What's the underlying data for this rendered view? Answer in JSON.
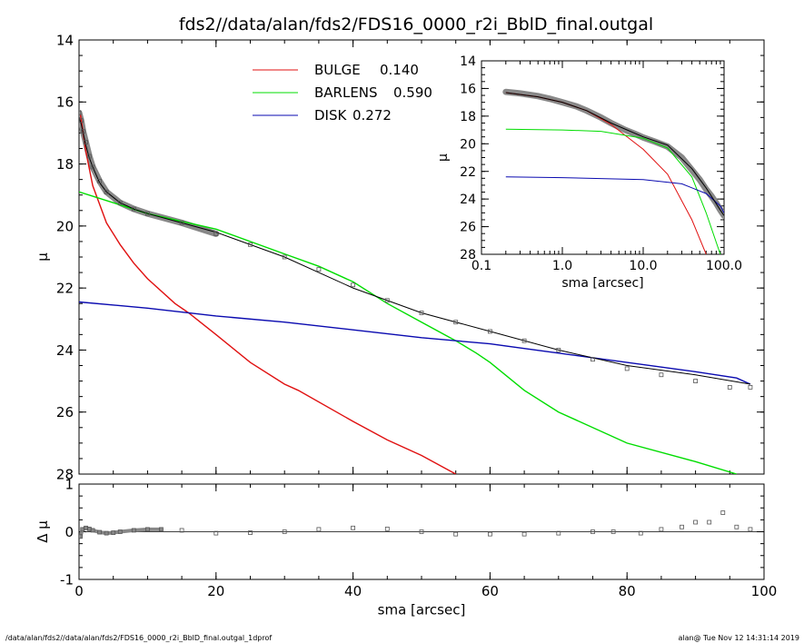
{
  "title": "fds2//data/alan/fds2/FDS16_0000_r2i_BblD_final.outgal",
  "footer": {
    "left": "/data/alan/fds2//data/alan/fds2/FDS16_0000_r2i_BblD_final.outgal_1dprof",
    "right": "alan@  Tue Nov 12 14:31:14 2019"
  },
  "colors": {
    "bulge": "#e01010",
    "barlens": "#00dd00",
    "disk": "#0a0ab0",
    "data": "#555555",
    "model": "#000000"
  },
  "chart_data": [
    {
      "id": "main",
      "type": "line",
      "xlabel": "sma [arcsec]",
      "ylabel": "μ",
      "xlim": [
        0,
        100
      ],
      "ylim": [
        28,
        14
      ],
      "x_ticks": [
        0,
        20,
        40,
        60,
        80,
        100
      ],
      "y_ticks": [
        14,
        16,
        18,
        20,
        22,
        24,
        26,
        28
      ],
      "legend": {
        "placement": "top-center",
        "entries": [
          {
            "name": "BULGE",
            "value": "0.140",
            "color": "#e01010"
          },
          {
            "name": "BARLENS",
            "value": "0.590",
            "color": "#00dd00"
          },
          {
            "name": "DISK",
            "value": "0.272",
            "color": "#0a0ab0"
          }
        ]
      },
      "series": [
        {
          "key": "bulge",
          "x": [
            0.2,
            1,
            2,
            4,
            6,
            8,
            10,
            14,
            16,
            20,
            25,
            30,
            32,
            40,
            45,
            50,
            55
          ],
          "y": [
            16.4,
            17.6,
            18.7,
            19.9,
            20.6,
            21.2,
            21.7,
            22.5,
            22.8,
            23.5,
            24.4,
            25.1,
            25.3,
            26.3,
            26.9,
            27.4,
            28.0
          ]
        },
        {
          "key": "barlens",
          "x": [
            0,
            10,
            20,
            30,
            35,
            40,
            45,
            50,
            55,
            58,
            60,
            65,
            70,
            80,
            90,
            96
          ],
          "y": [
            18.9,
            19.6,
            20.1,
            20.9,
            21.3,
            21.8,
            22.5,
            23.1,
            23.7,
            24.1,
            24.4,
            25.3,
            26.0,
            27.0,
            27.6,
            28.0
          ]
        },
        {
          "key": "disk",
          "x": [
            0,
            10,
            20,
            30,
            40,
            50,
            60,
            70,
            80,
            90,
            96,
            98
          ],
          "y": [
            22.45,
            22.65,
            22.9,
            23.1,
            23.35,
            23.6,
            23.8,
            24.1,
            24.4,
            24.7,
            24.9,
            25.1
          ]
        },
        {
          "key": "model",
          "x": [
            0,
            0.3,
            0.6,
            1,
            1.5,
            2,
            3,
            4,
            6,
            8,
            10,
            15,
            20,
            30,
            40,
            50,
            60,
            70,
            80,
            90,
            98
          ],
          "y": [
            16.5,
            16.7,
            17.0,
            17.4,
            17.8,
            18.1,
            18.6,
            18.9,
            19.25,
            19.45,
            19.6,
            19.9,
            20.2,
            21.0,
            22.0,
            22.8,
            23.4,
            24.0,
            24.5,
            24.8,
            25.1
          ]
        },
        {
          "key": "data",
          "x": [
            0,
            0.3,
            0.6,
            1,
            1.5,
            2,
            3,
            4,
            6,
            8,
            10,
            15,
            20,
            25,
            30,
            35,
            40,
            45,
            50,
            55,
            60,
            65,
            70,
            75,
            80,
            85,
            90,
            95,
            98
          ],
          "y": [
            16.35,
            16.6,
            16.95,
            17.3,
            17.75,
            18.1,
            18.55,
            18.9,
            19.25,
            19.45,
            19.6,
            19.9,
            20.25,
            20.6,
            21.0,
            21.4,
            21.9,
            22.4,
            22.8,
            23.1,
            23.4,
            23.7,
            24.0,
            24.3,
            24.6,
            24.8,
            25.0,
            25.2,
            25.2
          ]
        }
      ]
    },
    {
      "id": "residual",
      "type": "scatter",
      "xlabel": "sma [arcsec]",
      "ylabel": "Δ μ",
      "xlim": [
        0,
        100
      ],
      "ylim": [
        -1,
        1
      ],
      "x_ticks": [
        0,
        20,
        40,
        60,
        80,
        100
      ],
      "y_ticks": [
        -1,
        0,
        1
      ],
      "series": [
        {
          "key": "data",
          "x": [
            0.2,
            0.5,
            1,
            1.5,
            2,
            3,
            4,
            5,
            6,
            8,
            10,
            12,
            15,
            20,
            25,
            30,
            35,
            40,
            45,
            50,
            55,
            60,
            65,
            70,
            75,
            78,
            82,
            85,
            88,
            90,
            92,
            94,
            96,
            98
          ],
          "y": [
            -0.1,
            0.05,
            0.08,
            0.06,
            0.03,
            -0.01,
            -0.03,
            -0.02,
            0.0,
            0.03,
            0.05,
            0.05,
            0.03,
            -0.03,
            -0.02,
            0.0,
            0.05,
            0.08,
            0.06,
            0.0,
            -0.05,
            -0.05,
            -0.05,
            -0.03,
            0.0,
            0.0,
            -0.03,
            0.05,
            0.1,
            0.2,
            0.2,
            0.4,
            0.1,
            0.05
          ]
        }
      ]
    },
    {
      "id": "inset",
      "type": "line",
      "xlabel": "sma [arcsec]",
      "ylabel": "μ",
      "x_scale": "log",
      "xlim": [
        0.1,
        100
      ],
      "ylim": [
        28,
        14
      ],
      "x_ticks": [
        0.1,
        1.0,
        10.0,
        100.0
      ],
      "x_tick_labels": [
        "0.1",
        "1.0",
        "10.0",
        "100.0"
      ],
      "y_ticks": [
        14,
        16,
        18,
        20,
        22,
        24,
        26,
        28
      ],
      "series": [
        {
          "key": "bulge",
          "x": [
            0.2,
            0.5,
            1,
            2,
            4,
            10,
            20,
            40,
            60
          ],
          "y": [
            16.3,
            16.6,
            17.0,
            17.6,
            18.6,
            20.4,
            22.2,
            25.5,
            28.0
          ]
        },
        {
          "key": "barlens",
          "x": [
            0.2,
            1,
            3,
            10,
            20,
            40,
            60,
            90
          ],
          "y": [
            18.95,
            19.0,
            19.1,
            19.6,
            20.3,
            22.4,
            25.0,
            28.0
          ]
        },
        {
          "key": "disk",
          "x": [
            0.2,
            1,
            10,
            30,
            60,
            90,
            100
          ],
          "y": [
            22.4,
            22.45,
            22.6,
            22.9,
            23.6,
            24.5,
            25.0
          ]
        },
        {
          "key": "model",
          "x": [
            0.2,
            0.5,
            1,
            2,
            4,
            10,
            20,
            40,
            60,
            90,
            100
          ],
          "y": [
            16.3,
            16.6,
            17.0,
            17.6,
            18.5,
            19.5,
            20.1,
            21.8,
            23.2,
            24.8,
            25.2
          ]
        },
        {
          "key": "data",
          "x": [
            0.2,
            0.3,
            0.5,
            0.7,
            1,
            1.5,
            2,
            3,
            4,
            6,
            8,
            10,
            14,
            20,
            30,
            40,
            50,
            60,
            70,
            80,
            90,
            100
          ],
          "y": [
            16.25,
            16.35,
            16.55,
            16.75,
            17.0,
            17.3,
            17.6,
            18.1,
            18.5,
            19.0,
            19.3,
            19.55,
            19.85,
            20.2,
            21.0,
            21.9,
            22.6,
            23.3,
            23.8,
            24.3,
            24.8,
            25.2
          ]
        }
      ]
    }
  ]
}
